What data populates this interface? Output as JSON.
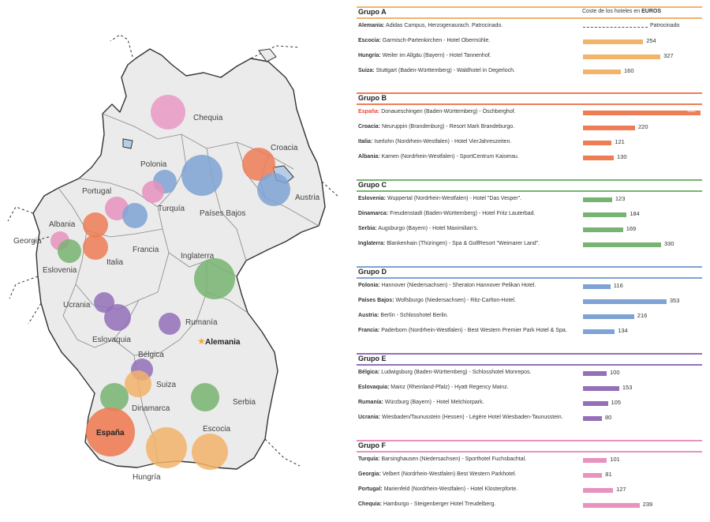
{
  "chart_data": {
    "type": "bar",
    "header": {
      "cost_prefix": "Coste de los hoteles en ",
      "cost_bold": "EUROS"
    },
    "sponsored_label": "Patrocinado",
    "scale_max": 500,
    "groups": [
      {
        "title": "Grupo A",
        "color": "#f2b36b",
        "rows": [
          {
            "country": "Alemania:",
            "text": "Adidas Campus, Herzogenaurach. Patrocinado.",
            "value": null,
            "sponsored": true
          },
          {
            "country": "Escocia:",
            "text": "Garmisch-Partenkirchen - Hotel Obermühle.",
            "value": 254
          },
          {
            "country": "Hungría:",
            "text": "Weiler im Allgäu (Bayern) - Hotel Tannenhof.",
            "value": 327
          },
          {
            "country": "Suiza:",
            "text": "Stuttgart (Baden-Württemberg) - Waldhotel in Degerloch.",
            "value": 160
          }
        ]
      },
      {
        "title": "Grupo B",
        "color": "#ee7d56",
        "rows": [
          {
            "country": "España:",
            "text": "Donaueschingen (Baden-Württemberg) - Öschberghof.",
            "value": 495,
            "country_color": "#e8493a"
          },
          {
            "country": "Croacia:",
            "text": "Neuruppin (Brandenburg) - Resort Mark Brandeburgo.",
            "value": 220
          },
          {
            "country": "Italia:",
            "text": "Iserlohn (Nordrhein-Westfalen) - Hotel VierJahreszeiten.",
            "value": 121
          },
          {
            "country": "Albania:",
            "text": "Kamen (Nordrhein-Westfalen) - SportCentrum Kaiserau.",
            "value": 130
          }
        ]
      },
      {
        "title": "Grupo C",
        "color": "#78b471",
        "rows": [
          {
            "country": "Eslovenia:",
            "text": "Wuppertal (Nordrhein-Westfalen) - Hotel \"Das Vesper\".",
            "value": 123
          },
          {
            "country": "Dinamarca:",
            "text": "Freudenstadt (Baden-Württemberg) - Hotel Fritz Lauterbad.",
            "value": 184
          },
          {
            "country": "Serbia:",
            "text": "Augsburgo (Bayern) - Hotel Maximilian's.",
            "value": 169
          },
          {
            "country": "Inglaterra:",
            "text": "Blankenhain (Thüringen) - Spa & GolfResort \"Weimarer Land\".",
            "value": 330
          }
        ]
      },
      {
        "title": "Grupo D",
        "color": "#7ea3d4",
        "rows": [
          {
            "country": "Polonia:",
            "text": "Hannover (Niedersachsen) - Sheraton Hannover Pelikan Hotel.",
            "value": 116
          },
          {
            "country": "Países Bajos:",
            "text": "Wolfsburgo (Niedersachsen) - Ritz-Carlton-Hotel.",
            "value": 353
          },
          {
            "country": "Austria:",
            "text": "Berlín - Schlosshotel Berlin.",
            "value": 216
          },
          {
            "country": "Francia:",
            "text": "Paderborn (Nordrhein-Westfalen) - Best Western Premier Park Hotel & Spa.",
            "value": 134
          }
        ]
      },
      {
        "title": "Grupo E",
        "color": "#9470b8",
        "rows": [
          {
            "country": "Bélgica:",
            "text": "Ludwigsburg (Baden-Württemberg) - Schlosshotel Monrepos.",
            "value": 100
          },
          {
            "country": "Eslovaquia:",
            "text": "Mainz (Rheinland-Pfalz) - Hyatt Regency Mainz.",
            "value": 153
          },
          {
            "country": "Rumanía:",
            "text": "Würzburg (Bayern) - Hotel Melchiorpark.",
            "value": 105
          },
          {
            "country": "Ucrania:",
            "text": "Wiesbaden/Taunusstein (Hessen) - Légère Hotel Wiesbaden-Taunusstein.",
            "value": 80
          }
        ]
      },
      {
        "title": "Grupo F",
        "color": "#e892c0",
        "rows": [
          {
            "country": "Turquía:",
            "text": "Barsinghausen (Niedersachsen) - Sporthotel Fuchsbachtal.",
            "value": 101
          },
          {
            "country": "Georgia:",
            "text": "Velbert (Nordrhein-Westfalen) Best Western Parkhotel.",
            "value": 81
          },
          {
            "country": "Portugal:",
            "text": "Marienfeld (Nordrhein-Westfalen) - Hotel Klosterpforte.",
            "value": 127
          },
          {
            "country": "Chequia:",
            "text": "Hamburgo - Steigenberger Hotel Treudelberg.",
            "value": 239
          }
        ]
      }
    ],
    "map_points": [
      {
        "team": "Chequia",
        "color": "#e892c0"
      },
      {
        "team": "Croacia",
        "color": "#ee7d56"
      },
      {
        "team": "Polonia",
        "color": "#7ea3d4"
      },
      {
        "team": "Países Bajos",
        "color": "#7ea3d4"
      },
      {
        "team": "Turquía",
        "color": "#e892c0"
      },
      {
        "team": "Austria",
        "color": "#7ea3d4"
      },
      {
        "team": "Portugal",
        "color": "#e892c0"
      },
      {
        "team": "Francia",
        "color": "#7ea3d4"
      },
      {
        "team": "Albania",
        "color": "#ee7d56"
      },
      {
        "team": "Italia",
        "color": "#ee7d56"
      },
      {
        "team": "Georgia",
        "color": "#e892c0"
      },
      {
        "team": "Eslovenia",
        "color": "#78b471"
      },
      {
        "team": "Inglaterra",
        "color": "#78b471"
      },
      {
        "team": "Ucrania",
        "color": "#9470b8"
      },
      {
        "team": "Eslovaquia",
        "color": "#9470b8"
      },
      {
        "team": "Rumanía",
        "color": "#9470b8"
      },
      {
        "team": "Alemania",
        "color": "#f2b36b"
      },
      {
        "team": "Bélgica",
        "color": "#9470b8"
      },
      {
        "team": "Suiza",
        "color": "#f2b36b"
      },
      {
        "team": "Dinamarca",
        "color": "#78b471"
      },
      {
        "team": "Serbia",
        "color": "#78b471"
      },
      {
        "team": "España",
        "color": "#ee7d56"
      },
      {
        "team": "Escocia",
        "color": "#f2b36b"
      },
      {
        "team": "Hungría",
        "color": "#f2b36b"
      }
    ]
  }
}
